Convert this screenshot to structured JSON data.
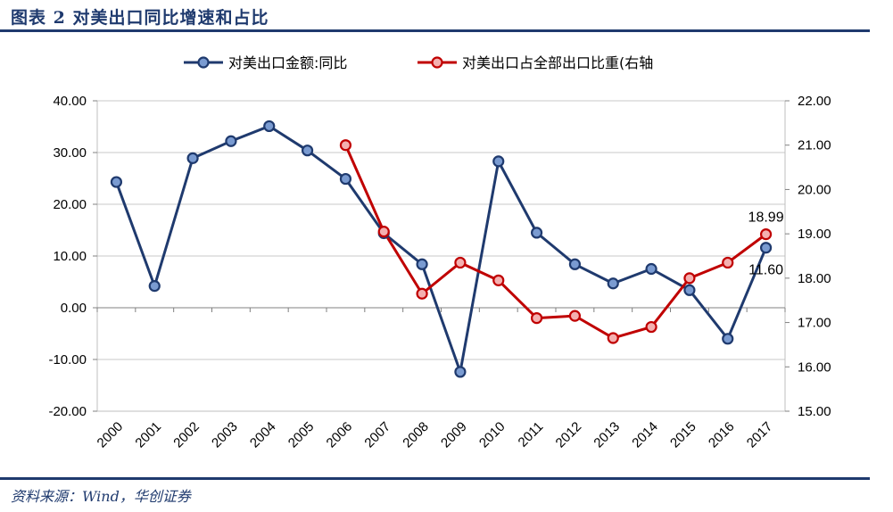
{
  "header": {
    "title": "图表 2    对美出口同比增速和占比"
  },
  "footer": {
    "source": "资料来源：Wind，华创证券"
  },
  "chart_data": {
    "type": "line",
    "categories": [
      "2000",
      "2001",
      "2002",
      "2003",
      "2004",
      "2005",
      "2006",
      "2007",
      "2008",
      "2009",
      "2010",
      "2011",
      "2012",
      "2013",
      "2014",
      "2015",
      "2016",
      "2017"
    ],
    "series": [
      {
        "name": "对美出口金额:同比",
        "axis": "left",
        "color": "#1f3a6e",
        "values": [
          24.3,
          4.2,
          28.9,
          32.2,
          35.1,
          30.4,
          24.9,
          14.4,
          8.4,
          -12.4,
          28.3,
          14.5,
          8.4,
          4.7,
          7.5,
          3.4,
          -6.0,
          11.6
        ]
      },
      {
        "name": "对美出口占全部出口比重(右轴",
        "axis": "right",
        "color": "#c00000",
        "values": [
          null,
          null,
          null,
          null,
          null,
          null,
          21.0,
          19.05,
          17.65,
          18.35,
          17.95,
          17.1,
          17.15,
          16.65,
          16.9,
          18.0,
          18.35,
          18.99
        ]
      }
    ],
    "y_left": {
      "lim": [
        -20,
        40
      ],
      "ticks": [
        "-20.00",
        "-10.00",
        "0.00",
        "10.00",
        "20.00",
        "30.00",
        "40.00"
      ]
    },
    "y_right": {
      "lim": [
        15,
        22
      ],
      "ticks": [
        "15.00",
        "16.00",
        "17.00",
        "18.00",
        "19.00",
        "20.00",
        "21.00",
        "22.00"
      ]
    },
    "annotations": [
      {
        "series": 1,
        "index": 17,
        "text": "18.99"
      },
      {
        "series": 0,
        "index": 17,
        "text": "11.60"
      }
    ],
    "legend": "top-center",
    "grid": "horizontal"
  }
}
